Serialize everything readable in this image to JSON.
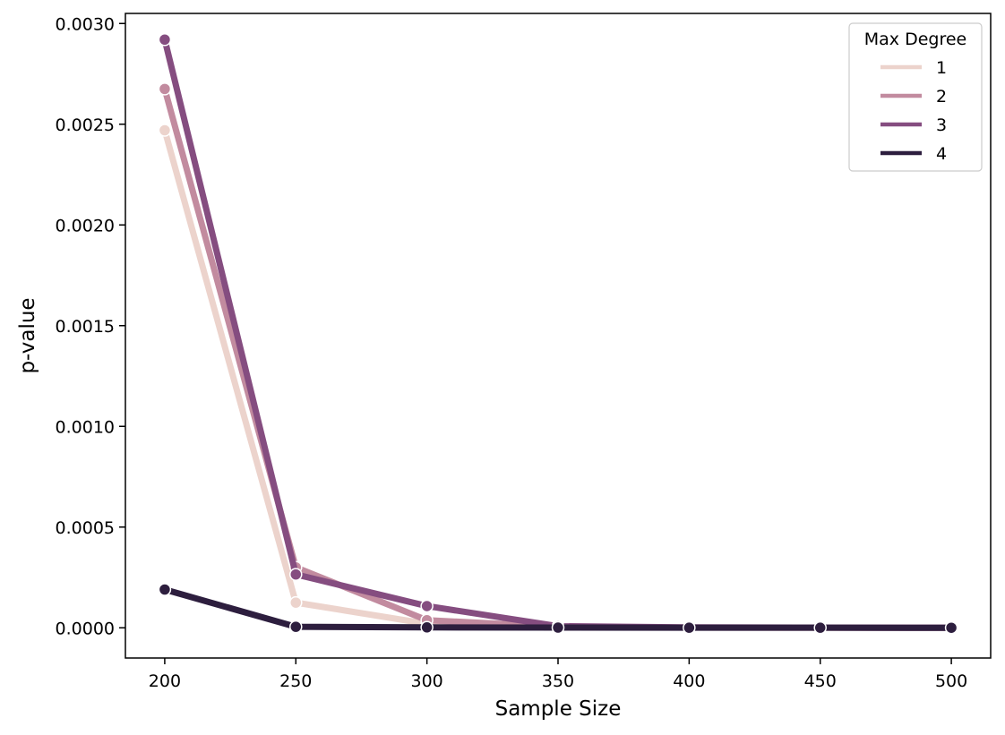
{
  "chart_data": {
    "type": "line",
    "title": "",
    "xlabel": "Sample Size",
    "ylabel": "p-value",
    "x": [
      200,
      250,
      300,
      350,
      400,
      450,
      500
    ],
    "xticks": [
      "200",
      "250",
      "300",
      "350",
      "400",
      "450",
      "500"
    ],
    "yticks": [
      "0.0000",
      "0.0005",
      "0.0010",
      "0.0015",
      "0.0020",
      "0.0025",
      "0.0030"
    ],
    "xlim": [
      185,
      515
    ],
    "ylim": [
      -0.00015,
      0.00305
    ],
    "grid": false,
    "legend": {
      "title": "Max Degree",
      "placement": "top-right"
    },
    "series": [
      {
        "name": "1",
        "color": "#ecd3cc",
        "values": [
          0.00247,
          0.000125,
          2e-05,
          3e-06,
          1e-06,
          5e-07,
          2e-07
        ]
      },
      {
        "name": "2",
        "color": "#c28b9f",
        "values": [
          0.002675,
          0.0003,
          3.8e-05,
          5e-06,
          1e-06,
          5e-07,
          2e-07
        ]
      },
      {
        "name": "3",
        "color": "#854d80",
        "values": [
          0.00292,
          0.000265,
          0.000108,
          8e-06,
          2e-06,
          1e-06,
          5e-07
        ]
      },
      {
        "name": "4",
        "color": "#2d1e3e",
        "values": [
          0.00019,
          5e-06,
          2e-06,
          1e-06,
          5e-07,
          3e-07,
          2e-07
        ]
      }
    ]
  }
}
